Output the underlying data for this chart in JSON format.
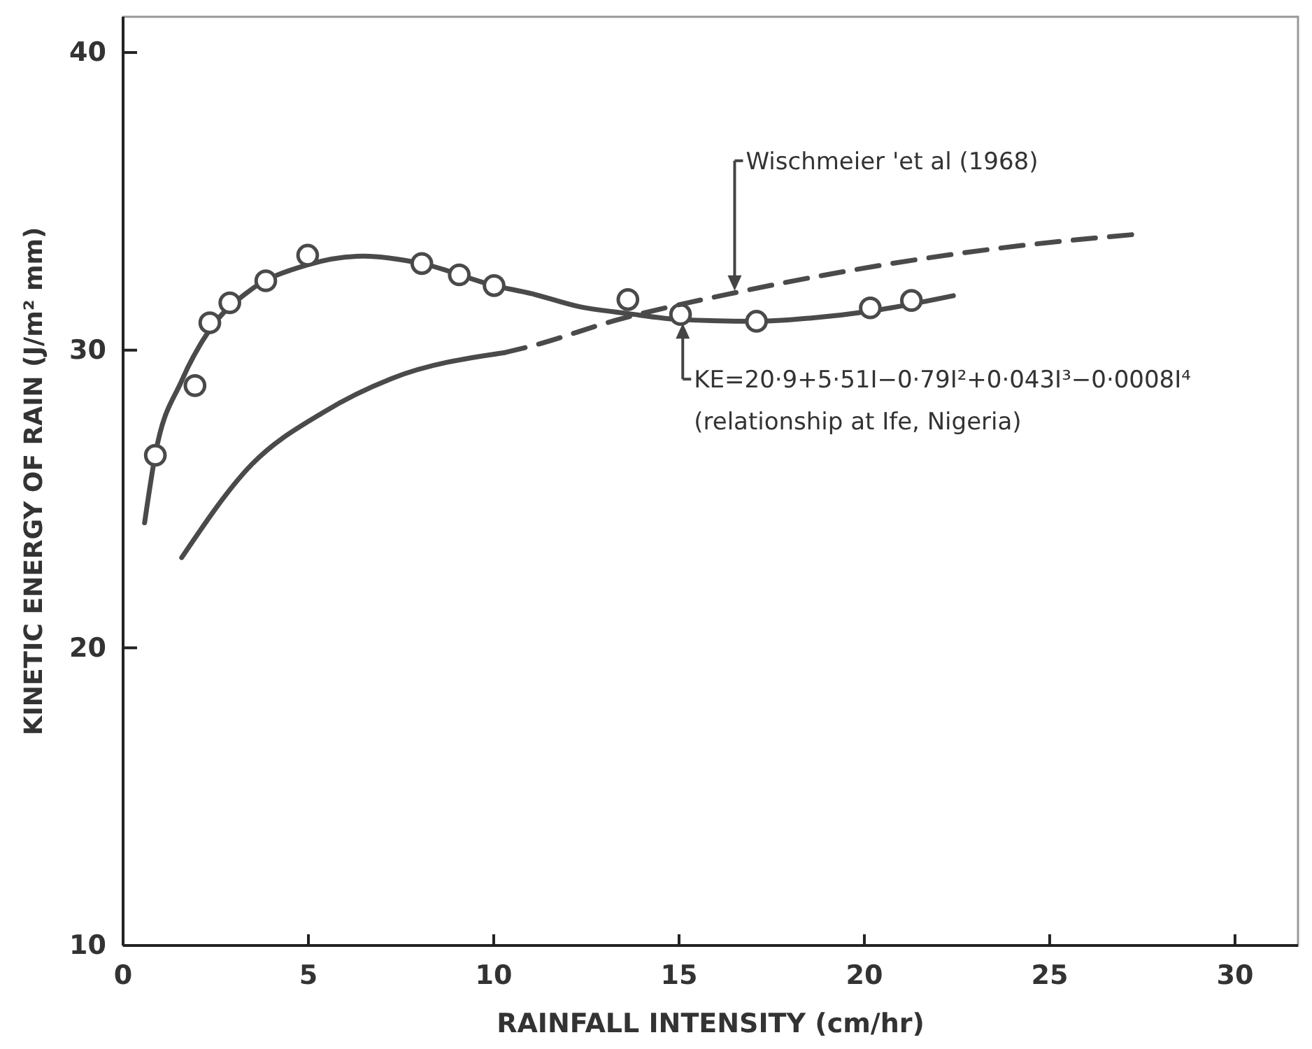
{
  "chart_data": {
    "type": "line",
    "xlabel": "RAINFALL INTENSITY (cm/hr)",
    "ylabel": "KINETIC ENERGY OF RAIN (J/m² mm)",
    "xlim": [
      0,
      31.7
    ],
    "ylim": [
      10,
      41.2
    ],
    "xticks": [
      0,
      5,
      10,
      15,
      20,
      25,
      30
    ],
    "yticks": [
      10,
      20,
      30,
      40
    ],
    "grid": false,
    "series": [
      {
        "color": "#4a4a4a",
        "line_style": "solid",
        "marker": "none",
        "x": [
          0.58,
          0.87,
          1.58,
          2.34,
          3.35,
          4.98,
          6.49,
          8.06,
          10.01,
          11.02,
          12.28,
          13.62,
          15.04,
          17.09,
          18.57,
          20.16,
          22.4
        ],
        "values": [
          24.2,
          26.5,
          28.97,
          30.69,
          31.94,
          32.87,
          33.16,
          32.91,
          32.17,
          31.9,
          31.47,
          31.23,
          31.03,
          30.97,
          31.08,
          31.31,
          31.83
        ]
      },
      {
        "type": "scatter",
        "color": "#4a4a4a",
        "marker": "circle",
        "x": [
          0.87,
          1.94,
          2.34,
          2.88,
          3.85,
          4.98,
          8.06,
          9.07,
          10.01,
          13.62,
          15.04,
          17.09,
          20.16,
          21.27
        ],
        "values": [
          26.47,
          28.81,
          30.92,
          31.59,
          32.33,
          33.19,
          32.91,
          32.53,
          32.17,
          31.7,
          31.2,
          30.97,
          31.42,
          31.67
        ]
      },
      {
        "color": "#4a4a4a",
        "line_style": "solid",
        "marker": "none",
        "x": [
          1.58,
          3.47,
          5.36,
          7.25,
          10.26
        ],
        "values": [
          23.03,
          26.16,
          27.88,
          29.05,
          29.91
        ]
      },
      {
        "color": "#4a4a4a",
        "line_style": "dashed",
        "marker": "none",
        "x": [
          10.26,
          11.02,
          13.28,
          16.55,
          23.6,
          27.4
        ],
        "values": [
          29.91,
          30.14,
          31.0,
          31.94,
          33.42,
          33.9
        ]
      }
    ],
    "annotations": [
      {
        "text": "Wischmeier 'et al (1968)",
        "x": 16.5,
        "y": 31.9
      },
      {
        "text": "KE=20·9+5·51I−0·79I²+0·043I³−0·0008I⁴",
        "x": 15.1,
        "y": 31.0
      },
      "(relationship at Ife, Nigeria)"
    ]
  }
}
